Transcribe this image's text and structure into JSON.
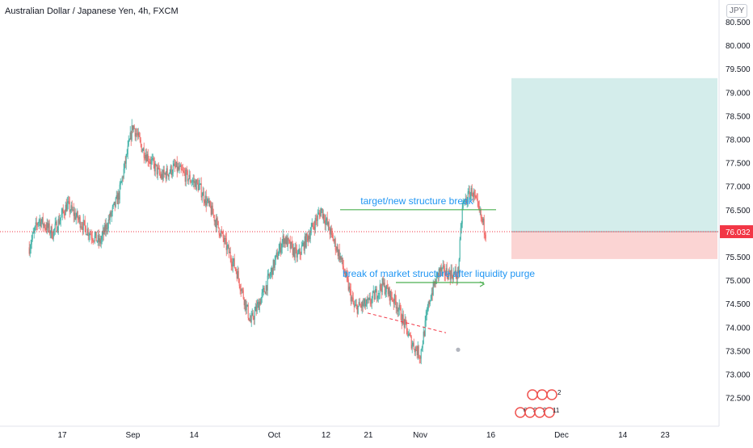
{
  "header": {
    "title": "Australian Dollar / Japanese Yen, 4h, FXCM",
    "currency": "JPY"
  },
  "price_badge": {
    "value": "76.032"
  },
  "annotations": {
    "target_label": "target/new structure break",
    "bms_label": "break of market structure after liquidity purge"
  },
  "event_badges": {
    "row1": [
      "3",
      "3",
      "2"
    ],
    "row2": [
      "6",
      "3",
      "3",
      "11"
    ]
  },
  "colors": {
    "up": "#26a69a",
    "down": "#ef5350",
    "annotation_text": "#2196f3",
    "annotation_line": "#4caf50",
    "trendline": "#f23645",
    "price_line": "#f23645",
    "target_zone": "#26a69a",
    "stop_zone": "#ef5350",
    "axis_text": "#131722"
  },
  "chart_data": {
    "type": "candlestick",
    "title": "Australian Dollar / Japanese Yen, 4h, FXCM",
    "ylabel": "JPY",
    "ylim": [
      72.0,
      81.0
    ],
    "yticks": [
      "72.500",
      "73.000",
      "73.500",
      "74.000",
      "74.500",
      "75.000",
      "75.500",
      "76.000",
      "76.500",
      "77.000",
      "77.500",
      "78.000",
      "78.500",
      "79.000",
      "79.500",
      "80.000",
      "80.500"
    ],
    "xticks": [
      "17",
      "Sep",
      "14",
      "Oct",
      "12",
      "21",
      "Nov",
      "16",
      "Dec",
      "14",
      "23"
    ],
    "current_price": 76.032,
    "grid": false,
    "price_path": [
      {
        "x": "Aug 10",
        "y": 75.7
      },
      {
        "x": "Aug 12",
        "y": 76.3
      },
      {
        "x": "Aug 15",
        "y": 76.0
      },
      {
        "x": "Aug 18",
        "y": 76.6
      },
      {
        "x": "Aug 22",
        "y": 76.1
      },
      {
        "x": "Aug 25",
        "y": 75.8
      },
      {
        "x": "Aug 29",
        "y": 76.8
      },
      {
        "x": "Sep 01",
        "y": 78.3
      },
      {
        "x": "Sep 03",
        "y": 77.8
      },
      {
        "x": "Sep 07",
        "y": 77.2
      },
      {
        "x": "Sep 10",
        "y": 77.4
      },
      {
        "x": "Sep 15",
        "y": 77.0
      },
      {
        "x": "Sep 18",
        "y": 76.4
      },
      {
        "x": "Sep 23",
        "y": 75.2
      },
      {
        "x": "Sep 26",
        "y": 74.1
      },
      {
        "x": "Sep 29",
        "y": 74.8
      },
      {
        "x": "Oct 03",
        "y": 75.9
      },
      {
        "x": "Oct 06",
        "y": 75.5
      },
      {
        "x": "Oct 11",
        "y": 76.5
      },
      {
        "x": "Oct 15",
        "y": 75.5
      },
      {
        "x": "Oct 18",
        "y": 74.4
      },
      {
        "x": "Oct 21",
        "y": 74.5
      },
      {
        "x": "Oct 24",
        "y": 74.9
      },
      {
        "x": "Oct 27",
        "y": 74.5
      },
      {
        "x": "Oct 30",
        "y": 73.7
      },
      {
        "x": "Nov 01",
        "y": 73.4
      },
      {
        "x": "Nov 03",
        "y": 74.6
      },
      {
        "x": "Nov 05",
        "y": 75.2
      },
      {
        "x": "Nov 09",
        "y": 75.1
      },
      {
        "x": "Nov 10",
        "y": 76.6
      },
      {
        "x": "Nov 12",
        "y": 76.9
      },
      {
        "x": "Nov 14",
        "y": 76.3
      },
      {
        "x": "Nov 15",
        "y": 76.0
      }
    ],
    "annotations": [
      {
        "text": "target/new structure break",
        "level": 76.5
      },
      {
        "text": "break of market structure after liquidity purge",
        "level": 74.95
      }
    ],
    "position": {
      "type": "long",
      "entry": 76.032,
      "take_profit": 79.3,
      "stop_loss": 75.45
    }
  }
}
